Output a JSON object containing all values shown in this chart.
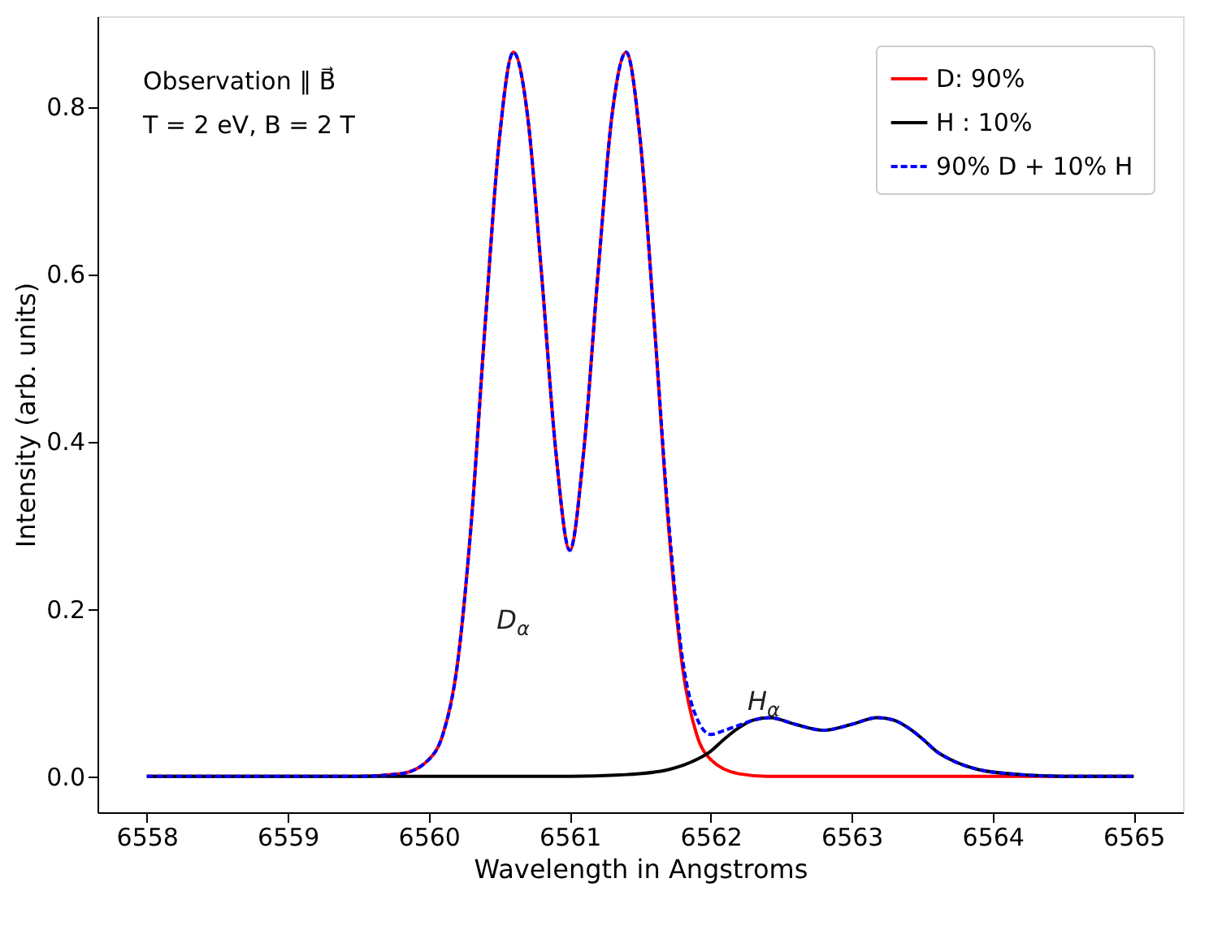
{
  "chart_data": {
    "type": "line",
    "xlabel": "Wavelength in Angstroms",
    "ylabel": "Intensity (arb. units)",
    "xlim": [
      6557.65,
      6565.35
    ],
    "ylim": [
      -0.043,
      0.908
    ],
    "xticks": [
      6558,
      6559,
      6560,
      6561,
      6562,
      6563,
      6564,
      6565
    ],
    "yticks": [
      {
        "value": 0,
        "label": "0.0"
      },
      {
        "value": 0.2,
        "label": "0.2"
      },
      {
        "value": 0.4,
        "label": "0.4"
      },
      {
        "value": 0.6,
        "label": "0.6"
      },
      {
        "value": 0.8,
        "label": "0.8"
      }
    ],
    "grid": false,
    "legend": "top right",
    "marker": "none",
    "annotations": [
      "Observation  ∥ B⃗",
      "T = 2 eV,  B = 2 T",
      "D$_{α}$",
      "H$_{α}$"
    ],
    "series": [
      {
        "name": "D: 90%",
        "color": "#ff0000",
        "line_style": "solid",
        "x": [
          6558,
          6559.5,
          6559.8,
          6560.0,
          6560.1,
          6560.2,
          6560.3,
          6560.4,
          6560.5,
          6560.6,
          6560.7,
          6560.8,
          6560.9,
          6561.0,
          6561.1,
          6561.2,
          6561.3,
          6561.4,
          6561.5,
          6561.6,
          6561.7,
          6561.8,
          6561.9,
          6562.0,
          6562.2,
          6562.4,
          6565
        ],
        "values": [
          0,
          0,
          0.003,
          0.02,
          0.05,
          0.13,
          0.3,
          0.54,
          0.76,
          0.865,
          0.79,
          0.6,
          0.39,
          0.27,
          0.39,
          0.6,
          0.79,
          0.865,
          0.76,
          0.54,
          0.3,
          0.13,
          0.05,
          0.02,
          0.003,
          0,
          0
        ]
      },
      {
        "name": "H : 10%",
        "color": "#000000",
        "line_style": "solid",
        "x": [
          6558,
          6561.0,
          6561.4,
          6561.7,
          6561.9,
          6562.0,
          6562.1,
          6562.2,
          6562.3,
          6562.42,
          6562.6,
          6562.8,
          6563.0,
          6563.18,
          6563.3,
          6563.4,
          6563.5,
          6563.6,
          6563.7,
          6563.9,
          6564.2,
          6564.5,
          6565
        ],
        "values": [
          0,
          0,
          0.002,
          0.008,
          0.02,
          0.03,
          0.045,
          0.058,
          0.067,
          0.07,
          0.062,
          0.055,
          0.062,
          0.07,
          0.067,
          0.058,
          0.045,
          0.03,
          0.02,
          0.008,
          0.002,
          0,
          0
        ]
      },
      {
        "name": "90% D +  10% H",
        "color": "#0000ff",
        "line_style": "dashed",
        "x": [
          6558,
          6559.5,
          6559.8,
          6560.0,
          6560.1,
          6560.2,
          6560.3,
          6560.4,
          6560.5,
          6560.6,
          6560.7,
          6560.8,
          6560.9,
          6561.0,
          6561.1,
          6561.2,
          6561.3,
          6561.4,
          6561.5,
          6561.6,
          6561.7,
          6561.8,
          6561.9,
          6562.0,
          6562.1,
          6562.2,
          6562.3,
          6562.42,
          6562.6,
          6562.8,
          6563.0,
          6563.18,
          6563.3,
          6563.4,
          6563.5,
          6563.6,
          6563.7,
          6563.9,
          6564.2,
          6564.5,
          6565
        ],
        "values": [
          0,
          0,
          0.003,
          0.02,
          0.05,
          0.13,
          0.3,
          0.54,
          0.76,
          0.865,
          0.79,
          0.6,
          0.39,
          0.27,
          0.39,
          0.6,
          0.79,
          0.865,
          0.76,
          0.54,
          0.308,
          0.14,
          0.07,
          0.05,
          0.055,
          0.061,
          0.067,
          0.07,
          0.062,
          0.055,
          0.062,
          0.07,
          0.067,
          0.058,
          0.045,
          0.03,
          0.02,
          0.008,
          0.002,
          0,
          0
        ]
      }
    ]
  }
}
